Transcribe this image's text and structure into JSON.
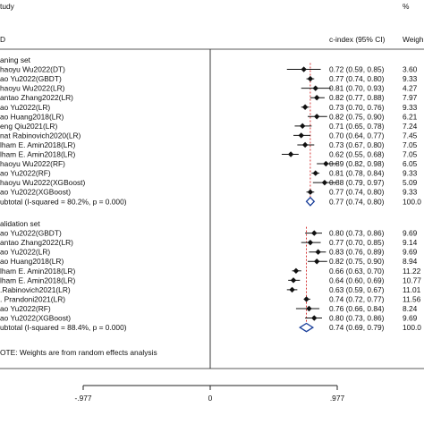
{
  "chart_data": {
    "type": "forest",
    "header": {
      "col1_line1": "tudy",
      "col1_line2": "D",
      "col2": "c-index (95% CI)",
      "col3_line1": "%",
      "col3_line2": "Weigh"
    },
    "groups": [
      {
        "name": "aning set",
        "studies": [
          {
            "label": "haoyu Wu2022(DT)",
            "est": 0.72,
            "lo": 0.59,
            "hi": 0.85,
            "ci_text": "0.72 (0.59, 0.85)",
            "weight": "3.60"
          },
          {
            "label": "ao Yu2022(GBDT)",
            "est": 0.77,
            "lo": 0.74,
            "hi": 0.8,
            "ci_text": "0.77 (0.74, 0.80)",
            "weight": "9.33"
          },
          {
            "label": "haoyu Wu2022(LR)",
            "est": 0.81,
            "lo": 0.7,
            "hi": 0.93,
            "ci_text": "0.81 (0.70, 0.93)",
            "weight": "4.27"
          },
          {
            "label": "antao Zhang2022(LR)",
            "est": 0.82,
            "lo": 0.77,
            "hi": 0.88,
            "ci_text": "0.82 (0.77, 0.88)",
            "weight": "7.97"
          },
          {
            "label": "ao Yu2022(LR)",
            "est": 0.73,
            "lo": 0.7,
            "hi": 0.76,
            "ci_text": "0.73 (0.70, 0.76)",
            "weight": "9.33"
          },
          {
            "label": "ao Huang2018(LR)",
            "est": 0.82,
            "lo": 0.75,
            "hi": 0.9,
            "ci_text": "0.82 (0.75, 0.90)",
            "weight": "6.21"
          },
          {
            "label": "eng Qiu2021(LR)",
            "est": 0.71,
            "lo": 0.65,
            "hi": 0.78,
            "ci_text": "0.71 (0.65, 0.78)",
            "weight": "7.24"
          },
          {
            "label": "nat Rabinovich2020(LR)",
            "est": 0.7,
            "lo": 0.64,
            "hi": 0.77,
            "ci_text": "0.70 (0.64, 0.77)",
            "weight": "7.45"
          },
          {
            "label": "lham E. Amin2018(LR)",
            "est": 0.73,
            "lo": 0.67,
            "hi": 0.8,
            "ci_text": "0.73 (0.67, 0.80)",
            "weight": "7.05"
          },
          {
            "label": "lham E. Amin2018(LR)",
            "est": 0.62,
            "lo": 0.55,
            "hi": 0.68,
            "ci_text": "0.62 (0.55, 0.68)",
            "weight": "7.05"
          },
          {
            "label": "haoyu Wu2022(RF)",
            "est": 0.89,
            "lo": 0.82,
            "hi": 0.98,
            "ci_text": "0.89 (0.82, 0.98)",
            "weight": "6.05"
          },
          {
            "label": "ao Yu2022(RF)",
            "est": 0.81,
            "lo": 0.78,
            "hi": 0.84,
            "ci_text": "0.81 (0.78, 0.84)",
            "weight": "9.33"
          },
          {
            "label": "haoyu Wu2022(XGBoost)",
            "est": 0.88,
            "lo": 0.79,
            "hi": 0.97,
            "ci_text": "0.88 (0.79, 0.97)",
            "weight": "5.09"
          },
          {
            "label": "ao Yu2022(XGBoost)",
            "est": 0.77,
            "lo": 0.74,
            "hi": 0.8,
            "ci_text": "0.77 (0.74, 0.80)",
            "weight": "9.33"
          }
        ],
        "subtotal": {
          "label": "ubtotal  (I-squared = 80.2%, p = 0.000)",
          "est": 0.77,
          "lo": 0.74,
          "hi": 0.8,
          "ci_text": "0.77 (0.74, 0.80)",
          "weight": "100.0"
        }
      },
      {
        "name": "alidation set",
        "studies": [
          {
            "label": "ao Yu2022(GBDT)",
            "est": 0.8,
            "lo": 0.73,
            "hi": 0.86,
            "ci_text": "0.80 (0.73, 0.86)",
            "weight": "9.69"
          },
          {
            "label": "antao Zhang2022(LR)",
            "est": 0.77,
            "lo": 0.7,
            "hi": 0.85,
            "ci_text": "0.77 (0.70, 0.85)",
            "weight": "9.14"
          },
          {
            "label": "ao Yu2022(LR)",
            "est": 0.83,
            "lo": 0.76,
            "hi": 0.89,
            "ci_text": "0.83 (0.76, 0.89)",
            "weight": "9.69"
          },
          {
            "label": "ao Huang2018(LR)",
            "est": 0.82,
            "lo": 0.75,
            "hi": 0.9,
            "ci_text": "0.82 (0.75, 0.90)",
            "weight": "8.94"
          },
          {
            "label": "lham E. Amin2018(LR)",
            "est": 0.66,
            "lo": 0.63,
            "hi": 0.7,
            "ci_text": "0.66 (0.63, 0.70)",
            "weight": "11.22"
          },
          {
            "label": "lham E. Amin2018(LR)",
            "est": 0.64,
            "lo": 0.6,
            "hi": 0.69,
            "ci_text": "0.64 (0.60, 0.69)",
            "weight": "10.77"
          },
          {
            "label": ".Rabinovich2021(LR)",
            "est": 0.63,
            "lo": 0.59,
            "hi": 0.67,
            "ci_text": "0.63 (0.59, 0.67)",
            "weight": "11.01"
          },
          {
            "label": ". Prandoni2021(LR)",
            "est": 0.74,
            "lo": 0.72,
            "hi": 0.77,
            "ci_text": "0.74 (0.72, 0.77)",
            "weight": "11.56"
          },
          {
            "label": "ao Yu2022(RF)",
            "est": 0.76,
            "lo": 0.66,
            "hi": 0.84,
            "ci_text": "0.76 (0.66, 0.84)",
            "weight": "8.24"
          },
          {
            "label": "ao Yu2022(XGBoost)",
            "est": 0.8,
            "lo": 0.73,
            "hi": 0.86,
            "ci_text": "0.80 (0.73, 0.86)",
            "weight": "9.69"
          }
        ],
        "subtotal": {
          "label": "ubtotal  (I-squared = 88.4%, p = 0.000)",
          "est": 0.74,
          "lo": 0.69,
          "hi": 0.79,
          "ci_text": "0.74 (0.69, 0.79)",
          "weight": "100.0"
        }
      }
    ],
    "note": "OTE: Weights are from random effects analysis",
    "axis": {
      "ticks": [
        {
          "value": -0.977,
          "label": "-.977"
        },
        {
          "value": 0,
          "label": "0"
        },
        {
          "value": 0.977,
          "label": ".977"
        }
      ],
      "xlim": [
        -0.977,
        0.977
      ],
      "reference_line": 0
    }
  }
}
